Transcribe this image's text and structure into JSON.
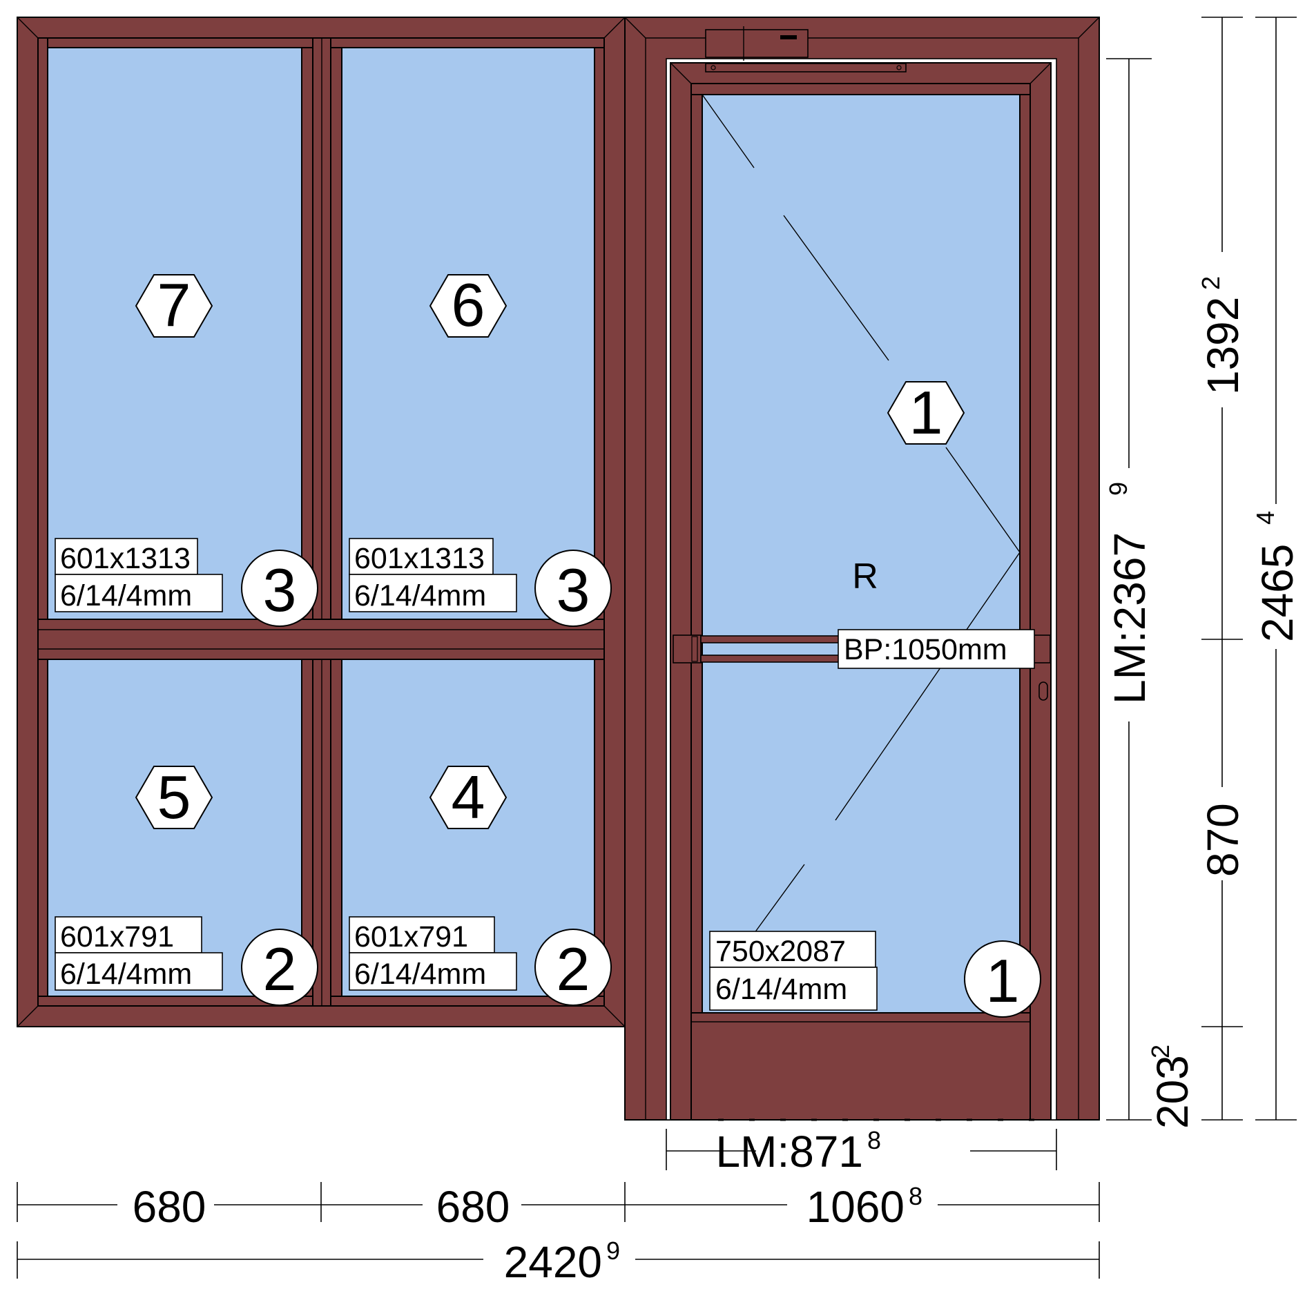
{
  "panels": {
    "p7": {
      "number": "7",
      "size": "601x1313",
      "glass": "6/14/4mm",
      "type_tag": "3"
    },
    "p6": {
      "number": "6",
      "size": "601x1313",
      "glass": "6/14/4mm",
      "type_tag": "3"
    },
    "p5": {
      "number": "5",
      "size": "601x791",
      "glass": "6/14/4mm",
      "type_tag": "2"
    },
    "p4": {
      "number": "4",
      "size": "601x791",
      "glass": "6/14/4mm",
      "type_tag": "2"
    },
    "door": {
      "number": "1",
      "size": "750x2087",
      "glass": "6/14/4mm",
      "type_tag": "1",
      "hand": "R",
      "handle_height": "BP:1050mm"
    }
  },
  "dimensions": {
    "bottom": {
      "w1": "680",
      "w2": "680",
      "w3": "1060",
      "w3_sup": "8",
      "total": "2420",
      "total_sup": "9"
    },
    "door_leaf_width": {
      "prefix": "LM:871",
      "sup": "8"
    },
    "door_leaf_height": {
      "prefix": "LM:2367",
      "sup": "9"
    },
    "right_inner": {
      "h1": "1392",
      "h1_sup": "2",
      "h2": "870",
      "h3": "203",
      "h3_sup": "2"
    },
    "right_outer": {
      "total": "2465",
      "total_sup": "4"
    }
  },
  "colors": {
    "frame": "#7e3f3f",
    "glass": "#a7c8ee",
    "background": "#ffffff"
  }
}
